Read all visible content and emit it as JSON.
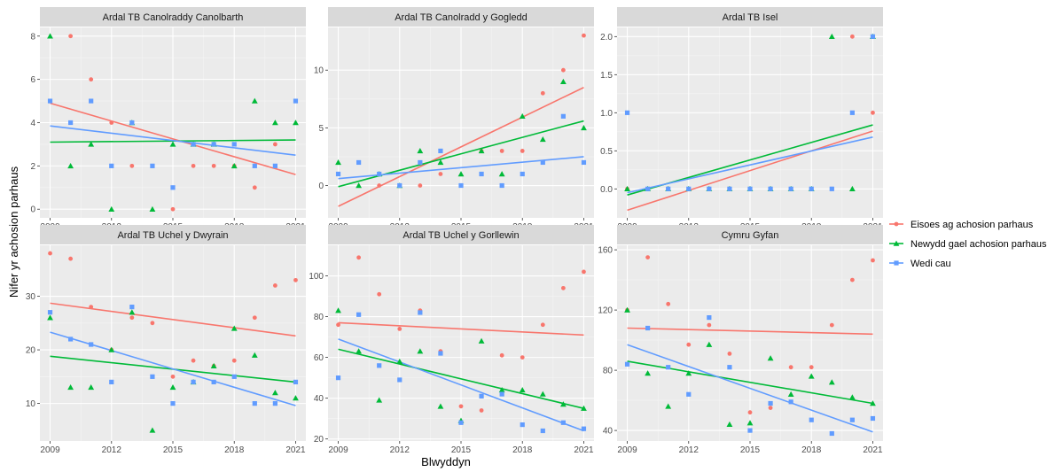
{
  "chart_data": {
    "type": "scatter",
    "xlabel": "Blwyddyn",
    "ylabel": "Nifer yr achosion parhaus",
    "x_ticks": [
      2009,
      2012,
      2015,
      2018,
      2021
    ],
    "xlim": [
      2008.5,
      2021.5
    ],
    "legend": {
      "position": "right",
      "entries": [
        {
          "name": "Eisoes ag achosion parhaus",
          "color": "#F8766D",
          "shape": "circle"
        },
        {
          "name": "Newydd gael achosion parhaus",
          "color": "#00BA38",
          "shape": "triangle"
        },
        {
          "name": "Wedi cau",
          "color": "#619CFF",
          "shape": "square"
        }
      ]
    },
    "panels": [
      {
        "title": "Ardal TB Canolraddy Canolbarth",
        "ylim": [
          -0.4,
          8.4
        ],
        "y_ticks": [
          0,
          2,
          4,
          6,
          8
        ],
        "series": [
          {
            "name": "Eisoes ag achosion parhaus",
            "x": [
              2009,
              2010,
              2011,
              2012,
              2013,
              2014,
              2015,
              2016,
              2017,
              2018,
              2019,
              2020,
              2021
            ],
            "y": [
              5,
              8,
              6,
              4,
              2,
              2,
              0,
              2,
              2,
              2,
              1,
              3,
              5
            ],
            "trend": [
              4.9,
              1.6
            ]
          },
          {
            "name": "Newydd gael achosion parhaus",
            "x": [
              2009,
              2010,
              2011,
              2012,
              2013,
              2014,
              2015,
              2016,
              2017,
              2018,
              2019,
              2020,
              2021
            ],
            "y": [
              8,
              2,
              3,
              0,
              4,
              0,
              3,
              3,
              3,
              2,
              5,
              4,
              4
            ],
            "trend": [
              3.1,
              3.2
            ]
          },
          {
            "name": "Wedi cau",
            "x": [
              2009,
              2010,
              2011,
              2012,
              2013,
              2014,
              2015,
              2016,
              2017,
              2018,
              2019,
              2020,
              2021
            ],
            "y": [
              5,
              4,
              5,
              2,
              4,
              2,
              1,
              3,
              3,
              3,
              2,
              2,
              5
            ],
            "trend": [
              3.85,
              2.5
            ]
          }
        ]
      },
      {
        "title": "Ardal TB Canolradd y Gogledd",
        "ylim": [
          -2.8,
          13.7
        ],
        "y_ticks": [
          0,
          5,
          10
        ],
        "series": [
          {
            "name": "Eisoes ag achosion parhaus",
            "x": [
              2009,
              2010,
              2011,
              2012,
              2013,
              2014,
              2015,
              2016,
              2017,
              2018,
              2019,
              2020,
              2021
            ],
            "y": [
              1,
              2,
              0,
              0,
              0,
              1,
              0,
              3,
              3,
              3,
              8,
              10,
              13
            ],
            "trend": [
              -1.8,
              8.5
            ]
          },
          {
            "name": "Newydd gael achosion parhaus",
            "x": [
              2009,
              2010,
              2011,
              2012,
              2013,
              2014,
              2015,
              2016,
              2017,
              2018,
              2019,
              2020,
              2021
            ],
            "y": [
              2,
              0,
              1,
              0,
              3,
              2,
              1,
              3,
              1,
              6,
              4,
              9,
              5
            ],
            "trend": [
              -0.1,
              5.6
            ]
          },
          {
            "name": "Wedi cau",
            "x": [
              2009,
              2010,
              2011,
              2012,
              2013,
              2014,
              2015,
              2016,
              2017,
              2018,
              2019,
              2020,
              2021
            ],
            "y": [
              1,
              2,
              1,
              0,
              2,
              3,
              0,
              1,
              0,
              1,
              2,
              6,
              2
            ],
            "trend": [
              0.6,
              2.5
            ]
          }
        ]
      },
      {
        "title": "Ardal TB Isel",
        "ylim": [
          -0.38,
          2.12
        ],
        "y_ticks": [
          0.0,
          0.5,
          1.0,
          1.5,
          2.0
        ],
        "y_tick_labels": [
          "0.0",
          "0.5",
          "1.0",
          "1.5",
          "2.0"
        ],
        "series": [
          {
            "name": "Eisoes ag achosion parhaus",
            "x": [
              2009,
              2010,
              2011,
              2012,
              2013,
              2014,
              2015,
              2016,
              2017,
              2018,
              2019,
              2020,
              2021
            ],
            "y": [
              0,
              0,
              0,
              0,
              0,
              0,
              0,
              0,
              0,
              0,
              0,
              2,
              1
            ],
            "trend": [
              -0.28,
              0.76
            ]
          },
          {
            "name": "Newydd gael achosion parhaus",
            "x": [
              2009,
              2010,
              2011,
              2012,
              2013,
              2014,
              2015,
              2016,
              2017,
              2018,
              2019,
              2020,
              2021
            ],
            "y": [
              0,
              0,
              0,
              0,
              0,
              0,
              0,
              0,
              0,
              0,
              2,
              0,
              2
            ],
            "trend": [
              -0.08,
              0.84
            ]
          },
          {
            "name": "Wedi cau",
            "x": [
              2009,
              2010,
              2011,
              2012,
              2013,
              2014,
              2015,
              2016,
              2017,
              2018,
              2019,
              2020,
              2021
            ],
            "y": [
              1,
              0,
              0,
              0,
              0,
              0,
              0,
              0,
              0,
              0,
              0,
              1,
              2
            ],
            "trend": [
              -0.05,
              0.68
            ]
          }
        ]
      },
      {
        "title": "Ardal TB Uchel y Dwyrain",
        "ylim": [
          3.0,
          39.5
        ],
        "y_ticks": [
          10,
          20,
          30
        ],
        "series": [
          {
            "name": "Eisoes ag achosion parhaus",
            "x": [
              2009,
              2010,
              2011,
              2012,
              2013,
              2014,
              2015,
              2016,
              2017,
              2018,
              2019,
              2020,
              2021
            ],
            "y": [
              38,
              37,
              28,
              20,
              26,
              25,
              15,
              18,
              17,
              18,
              26,
              32,
              33
            ],
            "trend": [
              28.7,
              22.6
            ]
          },
          {
            "name": "Newydd gael achosion parhaus",
            "x": [
              2009,
              2010,
              2011,
              2012,
              2013,
              2014,
              2015,
              2016,
              2017,
              2018,
              2019,
              2020,
              2021
            ],
            "y": [
              26,
              13,
              13,
              20,
              27,
              5,
              13,
              14,
              17,
              24,
              19,
              12,
              11
            ],
            "trend": [
              18.8,
              14.0
            ]
          },
          {
            "name": "Wedi cau",
            "x": [
              2009,
              2010,
              2011,
              2012,
              2013,
              2014,
              2015,
              2016,
              2017,
              2018,
              2019,
              2020,
              2021
            ],
            "y": [
              27,
              22,
              21,
              14,
              28,
              15,
              10,
              14,
              14,
              15,
              10,
              10,
              14
            ],
            "trend": [
              23.3,
              9.6
            ]
          }
        ]
      },
      {
        "title": "Ardal TB Uchel y Gorllewin",
        "ylim": [
          19.0,
          115.0
        ],
        "y_ticks": [
          20,
          40,
          60,
          80,
          100
        ],
        "series": [
          {
            "name": "Eisoes ag achosion parhaus",
            "x": [
              2009,
              2010,
              2011,
              2012,
              2013,
              2014,
              2015,
              2016,
              2017,
              2018,
              2019,
              2020,
              2021
            ],
            "y": [
              76,
              109,
              91,
              74,
              83,
              63,
              36,
              34,
              61,
              60,
              76,
              94,
              102
            ],
            "trend": [
              77,
              71
            ]
          },
          {
            "name": "Newydd gael achosion parhaus",
            "x": [
              2009,
              2010,
              2011,
              2012,
              2013,
              2014,
              2015,
              2016,
              2017,
              2018,
              2019,
              2020,
              2021
            ],
            "y": [
              83,
              63,
              39,
              58,
              63,
              36,
              29,
              68,
              44,
              44,
              42,
              37,
              35
            ],
            "trend": [
              64,
              35
            ]
          },
          {
            "name": "Wedi cau",
            "x": [
              2009,
              2010,
              2011,
              2012,
              2013,
              2014,
              2015,
              2016,
              2017,
              2018,
              2019,
              2020,
              2021
            ],
            "y": [
              50,
              81,
              56,
              49,
              82,
              62,
              28,
              41,
              42,
              27,
              24,
              28,
              25
            ],
            "trend": [
              69,
              24
            ]
          }
        ]
      },
      {
        "title": "Cymru Gyfan",
        "ylim": [
          33.0,
          163.0
        ],
        "y_ticks": [
          40,
          80,
          120,
          160
        ],
        "series": [
          {
            "name": "Eisoes ag achosion parhaus",
            "x": [
              2009,
              2010,
              2011,
              2012,
              2013,
              2014,
              2015,
              2016,
              2017,
              2018,
              2019,
              2020,
              2021
            ],
            "y": [
              120,
              155,
              124,
              97,
              110,
              91,
              52,
              55,
              82,
              82,
              110,
              140,
              153
            ],
            "trend": [
              108,
              104
            ]
          },
          {
            "name": "Newydd gael achosion parhaus",
            "x": [
              2009,
              2010,
              2011,
              2012,
              2013,
              2014,
              2015,
              2016,
              2017,
              2018,
              2019,
              2020,
              2021
            ],
            "y": [
              120,
              78,
              56,
              78,
              97,
              44,
              45,
              88,
              64,
              76,
              72,
              62,
              58
            ],
            "trend": [
              86,
              58
            ]
          },
          {
            "name": "Wedi cau",
            "x": [
              2009,
              2010,
              2011,
              2012,
              2013,
              2014,
              2015,
              2016,
              2017,
              2018,
              2019,
              2020,
              2021
            ],
            "y": [
              84,
              108,
              82,
              64,
              115,
              82,
              40,
              58,
              59,
              47,
              38,
              47,
              48
            ],
            "trend": [
              97,
              39
            ]
          }
        ]
      }
    ]
  }
}
